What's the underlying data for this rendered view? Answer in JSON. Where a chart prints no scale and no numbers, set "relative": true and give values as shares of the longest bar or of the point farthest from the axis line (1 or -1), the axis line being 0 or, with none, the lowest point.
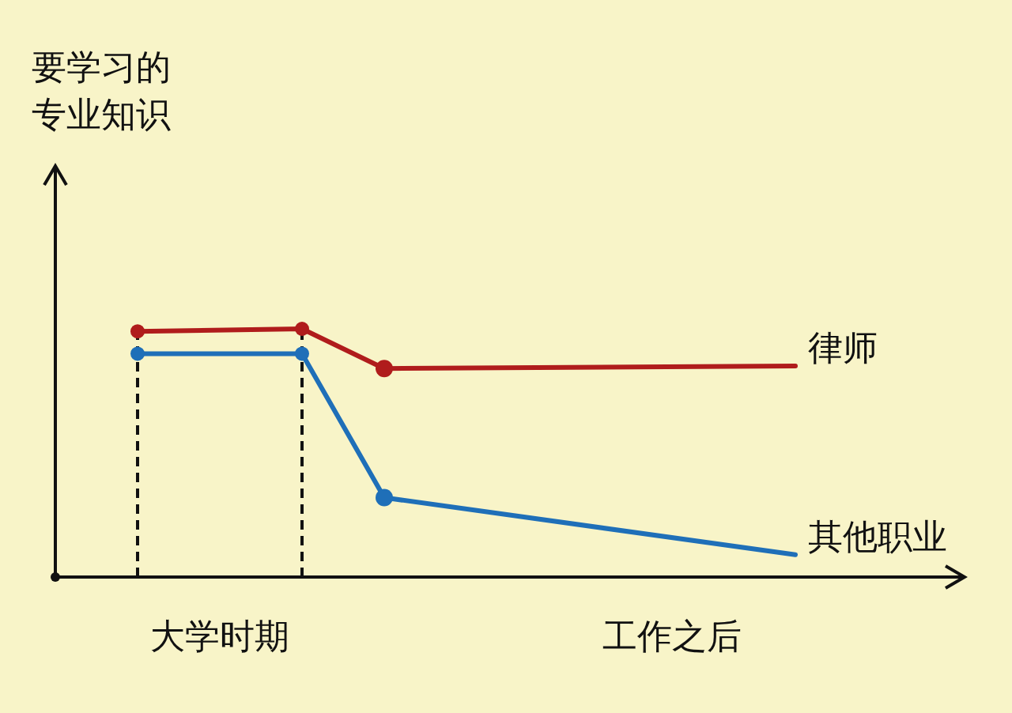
{
  "chart_data": {
    "type": "line",
    "relative": true,
    "annotations": [
      "要学习的专业知识"
    ],
    "categories": [
      null,
      null,
      null,
      null,
      "大学时期",
      null,
      null,
      null,
      null,
      null,
      null,
      null,
      null,
      null,
      null,
      "工作之后",
      null,
      null,
      null,
      null,
      null,
      null
    ],
    "series": [
      {
        "name": "律师",
        "color": "#b01c1c",
        "values": [
          null,
          null,
          0.99,
          null,
          null,
          null,
          1,
          null,
          0.84,
          null,
          null,
          null,
          null,
          null,
          null,
          null,
          null,
          null,
          0.85,
          null,
          null,
          null
        ]
      },
      {
        "name": "其他职业",
        "color": "#1f6fb8",
        "values": [
          null,
          null,
          0.9,
          null,
          null,
          null,
          0.9,
          null,
          0.32,
          null,
          null,
          null,
          null,
          null,
          null,
          null,
          null,
          null,
          0.09,
          null,
          null,
          null
        ]
      }
    ],
    "marker": "circle",
    "line_style": "solid"
  }
}
